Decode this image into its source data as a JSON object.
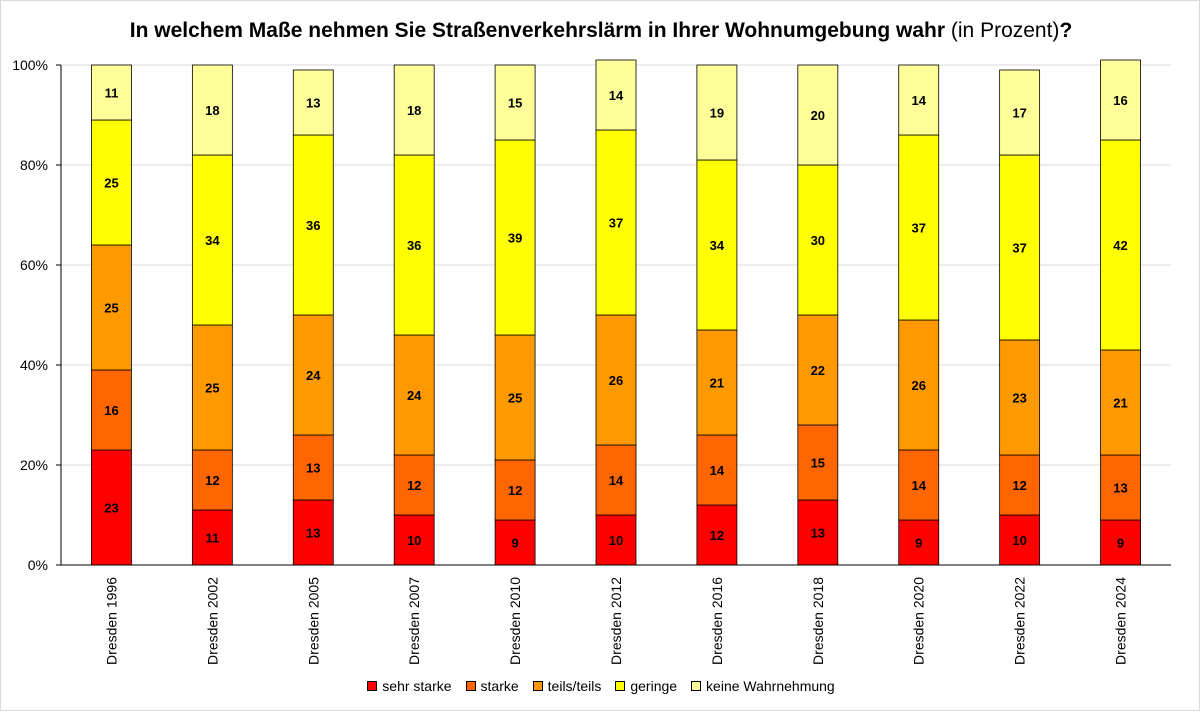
{
  "chart_data": {
    "type": "bar",
    "stacked": true,
    "percent": true,
    "title": "In welchem Maße nehmen Sie Straßenverkehrslärm in Ihrer Wohnumgebung wahr",
    "title_unit": "(in Prozent)",
    "title_end": "?",
    "ylim": [
      0,
      100
    ],
    "yticks": [
      "0%",
      "20%",
      "40%",
      "60%",
      "80%",
      "100%"
    ],
    "grid": true,
    "legend_position": "bottom",
    "categories": [
      "Dresden 1996",
      "Dresden 2002",
      "Dresden 2005",
      "Dresden 2007",
      "Dresden 2010",
      "Dresden 2012",
      "Dresden 2016",
      "Dresden 2018",
      "Dresden 2020",
      "Dresden 2022",
      "Dresden 2024"
    ],
    "series": [
      {
        "name": "sehr starke",
        "color": "#ff0000",
        "values": [
          23,
          11,
          13,
          10,
          9,
          10,
          12,
          13,
          9,
          10,
          9
        ]
      },
      {
        "name": "starke",
        "color": "#ff6600",
        "values": [
          16,
          12,
          13,
          12,
          12,
          14,
          14,
          15,
          14,
          12,
          13
        ]
      },
      {
        "name": "teils/teils",
        "color": "#ff9900",
        "values": [
          25,
          25,
          24,
          24,
          25,
          26,
          21,
          22,
          26,
          23,
          21
        ]
      },
      {
        "name": "geringe",
        "color": "#ffff00",
        "values": [
          25,
          34,
          36,
          36,
          39,
          37,
          34,
          30,
          37,
          37,
          42
        ]
      },
      {
        "name": "keine Wahrnehmung",
        "color": "#ffff99",
        "values": [
          11,
          18,
          13,
          18,
          15,
          14,
          19,
          20,
          14,
          17,
          16
        ]
      }
    ]
  }
}
